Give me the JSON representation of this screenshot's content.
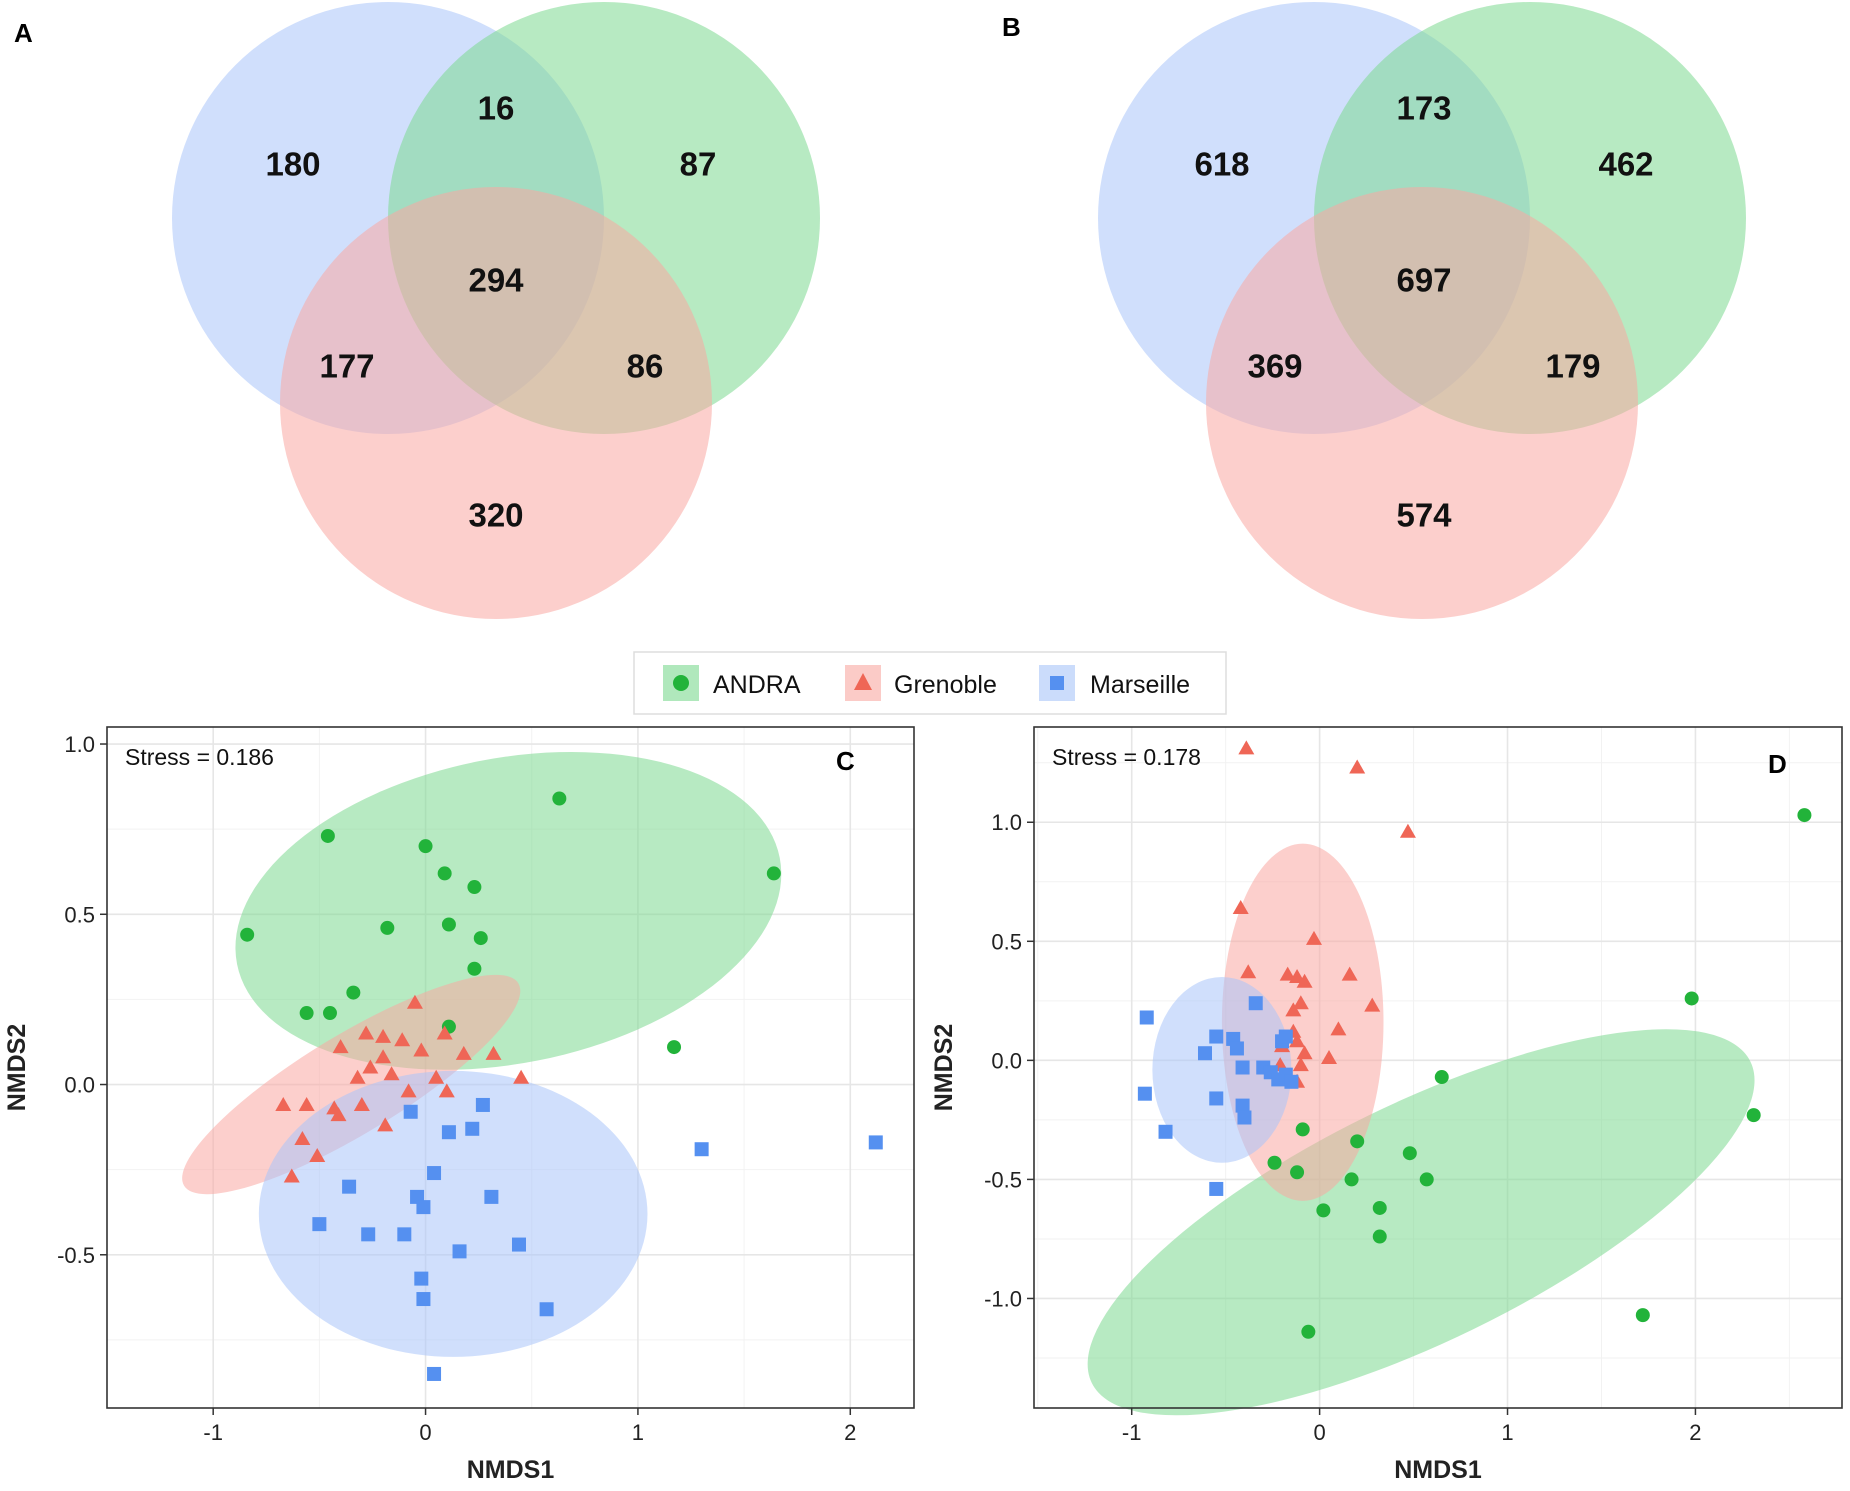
{
  "panels": {
    "A": "A",
    "B": "B",
    "C": "C",
    "D": "D"
  },
  "colors": {
    "andra": "#22b33a",
    "grenoble": "#ef6656",
    "marseille": "#5590f0",
    "ellipse_andra": "#7cd88f",
    "ellipse_grenoble": "#f9a8a2",
    "ellipse_marseille": "#a9c5f9",
    "venn_blue": "#a9c5f9",
    "venn_green": "#7cd88f",
    "venn_red": "#f9a8a2"
  },
  "legend": {
    "items": [
      {
        "label": "ANDRA",
        "shape": "circle"
      },
      {
        "label": "Grenoble",
        "shape": "triangle"
      },
      {
        "label": "Marseille",
        "shape": "square"
      }
    ]
  },
  "chart_data": [
    {
      "type": "venn",
      "panel": "A",
      "sets": [
        "blue",
        "green",
        "red"
      ],
      "regions": {
        "blue_only": "180",
        "green_only": "87",
        "red_only": "320",
        "blue_green": "16",
        "blue_red": "177",
        "green_red": "86",
        "all": "294"
      }
    },
    {
      "type": "venn",
      "panel": "B",
      "sets": [
        "blue",
        "green",
        "red"
      ],
      "regions": {
        "blue_only": "618",
        "green_only": "462",
        "red_only": "574",
        "blue_green": "173",
        "blue_red": "369",
        "green_red": "179",
        "all": "697"
      }
    },
    {
      "type": "scatter",
      "panel": "C",
      "stress": "Stress = 0.186",
      "xlabel": "NMDS1",
      "ylabel": "NMDS2",
      "xlim": [
        -1.5,
        2.3
      ],
      "ylim": [
        -0.95,
        1.05
      ],
      "xticks": [
        -1,
        0,
        1,
        2
      ],
      "xtick_labels": [
        "-1",
        "0",
        "1",
        "2"
      ],
      "yticks": [
        -0.5,
        0,
        0.5,
        1
      ],
      "ytick_labels": [
        "-0.5",
        "0.0",
        "0.5",
        "1.0"
      ],
      "ellipses": [
        {
          "group": "ANDRA",
          "cx": 0.39,
          "cy": 0.51,
          "rx": 1.302,
          "ry": 0.448,
          "angle": 11.1
        },
        {
          "group": "Grenoble",
          "cx": -0.35,
          "cy": 0.0,
          "rx": 0.92,
          "ry": 0.145,
          "angle": 31.2
        },
        {
          "group": "Marseille",
          "cx": 0.13,
          "cy": -0.38,
          "rx": 0.915,
          "ry": 0.42,
          "angle": 0
        }
      ],
      "series": [
        {
          "name": "ANDRA",
          "shape": "circle",
          "points": [
            [
              -0.84,
              0.44
            ],
            [
              -0.46,
              0.73
            ],
            [
              0.0,
              0.7
            ],
            [
              0.09,
              0.62
            ],
            [
              0.63,
              0.84
            ],
            [
              1.64,
              0.62
            ],
            [
              -0.18,
              0.46
            ],
            [
              0.11,
              0.47
            ],
            [
              0.23,
              0.58
            ],
            [
              0.26,
              0.43
            ],
            [
              0.23,
              0.34
            ],
            [
              -0.34,
              0.27
            ],
            [
              -0.56,
              0.21
            ],
            [
              -0.45,
              0.21
            ],
            [
              0.11,
              0.17
            ],
            [
              1.17,
              0.11
            ]
          ]
        },
        {
          "name": "Grenoble",
          "shape": "triangle",
          "points": [
            [
              -0.67,
              -0.06
            ],
            [
              -0.56,
              -0.06
            ],
            [
              -0.58,
              -0.16
            ],
            [
              -0.63,
              -0.27
            ],
            [
              -0.51,
              -0.21
            ],
            [
              -0.43,
              -0.07
            ],
            [
              -0.41,
              -0.09
            ],
            [
              -0.28,
              0.15
            ],
            [
              -0.4,
              0.11
            ],
            [
              -0.2,
              0.14
            ],
            [
              -0.11,
              0.13
            ],
            [
              -0.05,
              0.24
            ],
            [
              0.09,
              0.15
            ],
            [
              -0.32,
              0.02
            ],
            [
              -0.26,
              0.05
            ],
            [
              -0.2,
              0.08
            ],
            [
              -0.3,
              -0.06
            ],
            [
              -0.08,
              -0.02
            ],
            [
              -0.02,
              0.1
            ],
            [
              0.18,
              0.09
            ],
            [
              0.32,
              0.09
            ],
            [
              0.45,
              0.02
            ],
            [
              0.1,
              -0.02
            ],
            [
              -0.19,
              -0.12
            ],
            [
              0.05,
              0.02
            ],
            [
              -0.16,
              0.03
            ]
          ]
        },
        {
          "name": "Marseille",
          "shape": "square",
          "points": [
            [
              -0.07,
              -0.08
            ],
            [
              0.11,
              -0.14
            ],
            [
              0.22,
              -0.13
            ],
            [
              0.27,
              -0.06
            ],
            [
              -0.36,
              -0.3
            ],
            [
              -0.5,
              -0.41
            ],
            [
              -0.27,
              -0.44
            ],
            [
              -0.1,
              -0.44
            ],
            [
              0.04,
              -0.26
            ],
            [
              -0.04,
              -0.33
            ],
            [
              -0.01,
              -0.36
            ],
            [
              0.31,
              -0.33
            ],
            [
              0.16,
              -0.49
            ],
            [
              0.44,
              -0.47
            ],
            [
              -0.02,
              -0.57
            ],
            [
              -0.01,
              -0.63
            ],
            [
              0.57,
              -0.66
            ],
            [
              0.04,
              -0.85
            ],
            [
              1.3,
              -0.19
            ],
            [
              2.12,
              -0.17
            ]
          ]
        }
      ]
    },
    {
      "type": "scatter",
      "panel": "D",
      "stress": "Stress = 0.178",
      "xlabel": "NMDS1",
      "ylabel": "NMDS2",
      "xlim": [
        -1.52,
        2.78
      ],
      "ylim": [
        -1.46,
        1.4
      ],
      "xticks": [
        -1,
        0,
        1,
        2
      ],
      "xtick_labels": [
        "-1",
        "0",
        "1",
        "2"
      ],
      "yticks": [
        -1,
        -0.5,
        0,
        0.5,
        1
      ],
      "ytick_labels": [
        "-1.0",
        "-0.5",
        "0.0",
        "0.5",
        "1.0"
      ],
      "ellipses": [
        {
          "group": "ANDRA",
          "cx": 0.54,
          "cy": -0.68,
          "rx": 1.95,
          "ry": 0.5,
          "angle": 26.0
        },
        {
          "group": "Grenoble",
          "cx": -0.09,
          "cy": 0.16,
          "rx": 0.43,
          "ry": 0.75,
          "angle": 0
        },
        {
          "group": "Marseille",
          "cx": -0.52,
          "cy": -0.04,
          "rx": 0.37,
          "ry": 0.39,
          "angle": 0
        }
      ],
      "series": [
        {
          "name": "ANDRA",
          "shape": "circle",
          "points": [
            [
              2.58,
              1.03
            ],
            [
              1.98,
              0.26
            ],
            [
              2.31,
              -0.23
            ],
            [
              1.72,
              -1.07
            ],
            [
              0.65,
              -0.07
            ],
            [
              0.48,
              -0.39
            ],
            [
              0.57,
              -0.5
            ],
            [
              0.32,
              -0.62
            ],
            [
              0.32,
              -0.74
            ],
            [
              0.17,
              -0.5
            ],
            [
              0.02,
              -0.63
            ],
            [
              0.2,
              -0.34
            ],
            [
              -0.12,
              -0.47
            ],
            [
              -0.24,
              -0.43
            ],
            [
              -0.09,
              -0.29
            ],
            [
              -0.06,
              -1.14
            ]
          ]
        },
        {
          "name": "Grenoble",
          "shape": "triangle",
          "points": [
            [
              -0.39,
              1.31
            ],
            [
              0.2,
              1.23
            ],
            [
              0.47,
              0.96
            ],
            [
              -0.42,
              0.64
            ],
            [
              -0.03,
              0.51
            ],
            [
              -0.38,
              0.37
            ],
            [
              -0.17,
              0.36
            ],
            [
              -0.12,
              0.35
            ],
            [
              -0.08,
              0.33
            ],
            [
              0.16,
              0.36
            ],
            [
              0.28,
              0.23
            ],
            [
              -0.1,
              0.24
            ],
            [
              -0.14,
              0.21
            ],
            [
              0.1,
              0.13
            ],
            [
              -0.12,
              0.08
            ],
            [
              -0.14,
              0.12
            ],
            [
              -0.2,
              0.06
            ],
            [
              -0.08,
              0.03
            ],
            [
              0.05,
              0.01
            ],
            [
              -0.1,
              -0.02
            ],
            [
              -0.21,
              -0.02
            ],
            [
              -0.12,
              -0.09
            ]
          ]
        },
        {
          "name": "Marseille",
          "shape": "square",
          "points": [
            [
              -0.92,
              0.18
            ],
            [
              -0.93,
              -0.14
            ],
            [
              -0.82,
              -0.3
            ],
            [
              -0.55,
              -0.54
            ],
            [
              -0.55,
              -0.16
            ],
            [
              -0.41,
              -0.19
            ],
            [
              -0.4,
              -0.24
            ],
            [
              -0.34,
              0.24
            ],
            [
              -0.55,
              0.1
            ],
            [
              -0.46,
              0.09
            ],
            [
              -0.44,
              0.05
            ],
            [
              -0.61,
              0.03
            ],
            [
              -0.41,
              -0.03
            ],
            [
              -0.3,
              -0.03
            ],
            [
              -0.26,
              -0.05
            ],
            [
              -0.22,
              -0.08
            ],
            [
              -0.18,
              -0.06
            ],
            [
              -0.15,
              -0.09
            ],
            [
              -0.2,
              0.08
            ],
            [
              -0.18,
              0.1
            ]
          ]
        }
      ]
    }
  ]
}
